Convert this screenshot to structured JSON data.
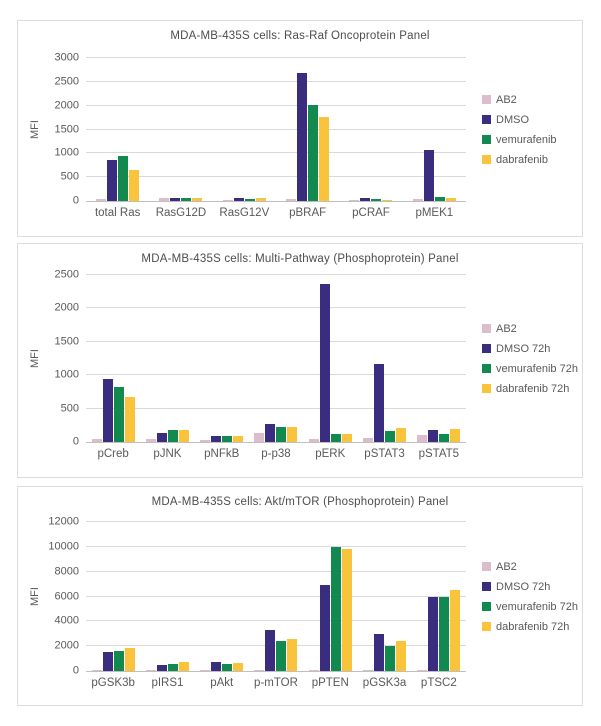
{
  "page": {
    "background": "#ffffff"
  },
  "palette": {
    "AB2": "#ddbdcc",
    "DMSO": "#3a2d80",
    "vemurafenib": "#11894f",
    "dabrafenib": "#f9c33c",
    "gridline": "#d9d9d9",
    "axis_line": "#bfbfbf",
    "text": "#595959",
    "panel_border": "#d8dde2"
  },
  "chart_data": [
    {
      "type": "bar",
      "title": "MDA-MB-435S cells: Ras-Raf Oncoprotein Panel",
      "xlabel": "",
      "ylabel": "MFI",
      "ylim": [
        0,
        3000
      ],
      "yticks": [
        0,
        500,
        1000,
        1500,
        2000,
        2500,
        3000
      ],
      "grid": true,
      "legend_position": "right",
      "categories": [
        "total Ras",
        "RasG12D",
        "RasG12V",
        "pBRAF",
        "pCRAF",
        "pMEK1"
      ],
      "series": [
        {
          "name": "AB2",
          "color": "#ddbdcc",
          "values": [
            50,
            70,
            30,
            35,
            10,
            50
          ]
        },
        {
          "name": "DMSO",
          "color": "#3a2d80",
          "values": [
            870,
            55,
            55,
            2680,
            60,
            1080
          ]
        },
        {
          "name": "vemurafenib",
          "color": "#11894f",
          "values": [
            950,
            55,
            50,
            2010,
            50,
            75
          ]
        },
        {
          "name": "dabrafenib",
          "color": "#f9c33c",
          "values": [
            660,
            55,
            55,
            1760,
            30,
            55
          ]
        }
      ]
    },
    {
      "type": "bar",
      "title": "MDA-MB-435S cells: Multi-Pathway (Phosphoprotein) Panel",
      "xlabel": "",
      "ylabel": "MFI",
      "ylim": [
        0,
        2500
      ],
      "yticks": [
        0,
        500,
        1000,
        1500,
        2000,
        2500
      ],
      "grid": true,
      "legend_position": "right",
      "categories": [
        "pCreb",
        "pJNK",
        "pNFkB",
        "p-p38",
        "pERK",
        "pSTAT3",
        "pSTAT5"
      ],
      "series": [
        {
          "name": "AB2",
          "color": "#ddbdcc",
          "values": [
            40,
            40,
            25,
            140,
            40,
            55,
            110
          ]
        },
        {
          "name": "DMSO 72h",
          "color": "#3a2d80",
          "values": [
            950,
            140,
            85,
            265,
            2360,
            1170,
            185
          ]
        },
        {
          "name": "vemurafenib 72h",
          "color": "#11894f",
          "values": [
            820,
            185,
            95,
            225,
            115,
            160,
            115
          ]
        },
        {
          "name": "dabrafenib 72h",
          "color": "#f9c33c",
          "values": [
            680,
            175,
            95,
            225,
            115,
            205,
            190
          ]
        }
      ]
    },
    {
      "type": "bar",
      "title": "MDA-MB-435S cells: Akt/mTOR (Phosphoprotein) Panel",
      "xlabel": "",
      "ylabel": "MFI",
      "ylim": [
        0,
        12000
      ],
      "yticks": [
        0,
        2000,
        4000,
        6000,
        8000,
        10000,
        12000
      ],
      "grid": true,
      "legend_position": "right",
      "categories": [
        "pGSK3b",
        "pIRS1",
        "pAkt",
        "p-mTOR",
        "pPTEN",
        "pGSK3a",
        "pTSC2"
      ],
      "series": [
        {
          "name": "AB2",
          "color": "#ddbdcc",
          "values": [
            30,
            20,
            80,
            100,
            30,
            20,
            30
          ]
        },
        {
          "name": "DMSO 72h",
          "color": "#3a2d80",
          "values": [
            1550,
            500,
            760,
            3300,
            6900,
            3000,
            5950
          ]
        },
        {
          "name": "vemurafenib 72h",
          "color": "#11894f",
          "values": [
            1650,
            550,
            560,
            2450,
            10000,
            2050,
            5950
          ]
        },
        {
          "name": "dabrafenib 72h",
          "color": "#f9c33c",
          "values": [
            1850,
            730,
            640,
            2600,
            9800,
            2450,
            6500
          ]
        }
      ]
    }
  ]
}
